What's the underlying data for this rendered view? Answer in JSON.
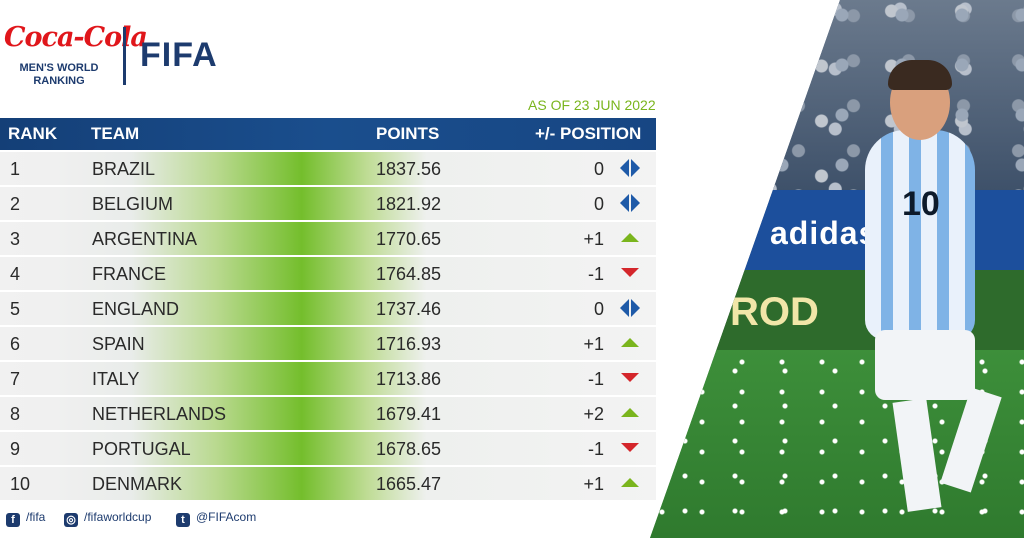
{
  "header": {
    "brand": "Coca-Cola",
    "subtitle_lines": [
      "MEN'S WORLD",
      "RANKING"
    ],
    "partner": "FIFA",
    "as_of": "AS OF 23 JUN 2022"
  },
  "table": {
    "columns": [
      "RANK",
      "TEAM",
      "POINTS",
      "+/- POSITION"
    ],
    "rows": [
      {
        "rank": "1",
        "team": "BRAZIL",
        "points": "1837.56",
        "change": "0",
        "trend": "same"
      },
      {
        "rank": "2",
        "team": "BELGIUM",
        "points": "1821.92",
        "change": "0",
        "trend": "same"
      },
      {
        "rank": "3",
        "team": "ARGENTINA",
        "points": "1770.65",
        "change": "+1",
        "trend": "up"
      },
      {
        "rank": "4",
        "team": "FRANCE",
        "points": "1764.85",
        "change": "-1",
        "trend": "down"
      },
      {
        "rank": "5",
        "team": "ENGLAND",
        "points": "1737.46",
        "change": "0",
        "trend": "same"
      },
      {
        "rank": "6",
        "team": "SPAIN",
        "points": "1716.93",
        "change": "+1",
        "trend": "up"
      },
      {
        "rank": "7",
        "team": "ITALY",
        "points": "1713.86",
        "change": "-1",
        "trend": "down"
      },
      {
        "rank": "8",
        "team": "NETHERLANDS",
        "points": "1679.41",
        "change": "+2",
        "trend": "up"
      },
      {
        "rank": "9",
        "team": "PORTUGAL",
        "points": "1678.65",
        "change": "-1",
        "trend": "down"
      },
      {
        "rank": "10",
        "team": "DENMARK",
        "points": "1665.47",
        "change": "+1",
        "trend": "up"
      }
    ]
  },
  "footer": {
    "facebook": "/fifa",
    "instagram": "/fifaworldcup",
    "twitter": "@FIFAcom"
  },
  "photo": {
    "adboard_text": "adidas",
    "adboard2_text": "ROD",
    "shirt_number": "10"
  },
  "colors": {
    "brand_red": "#e0161b",
    "navy": "#1d3b6e",
    "accent_green": "#7ab51d",
    "down_red": "#d4262b"
  }
}
